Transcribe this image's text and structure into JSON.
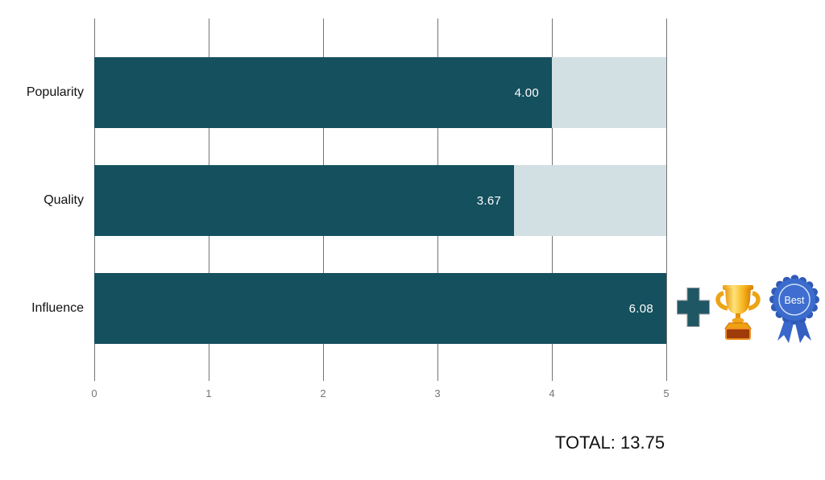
{
  "chart_data": {
    "type": "bar",
    "orientation": "horizontal",
    "title": "",
    "xlabel": "",
    "ylabel": "",
    "categories": [
      "Popularity",
      "Quality",
      "Influence"
    ],
    "values": [
      4.0,
      3.67,
      6.08
    ],
    "value_labels": [
      "4.00",
      "3.67",
      "6.08"
    ],
    "xlim": [
      0,
      5
    ],
    "x_ticks": [
      "0",
      "1",
      "2",
      "3",
      "4",
      "5"
    ],
    "grid": true,
    "legend": "none",
    "bar_color": "#15505e",
    "track_color": "#d2dfe3",
    "gridline_color": "#757575"
  },
  "annotations": {
    "total_label": "TOTAL: 13.75",
    "badge_text": "Best"
  },
  "icons": {
    "plus": "plus-icon",
    "trophy": "trophy-icon",
    "badge": "best-ribbon-icon"
  },
  "colors": {
    "plus": "#1f5765",
    "trophy_gold": "#f6b51e",
    "badge_blue": "#3b6ccd",
    "value_text": "#ffffff",
    "axis_text": "#757575",
    "category_text": "#111111"
  }
}
